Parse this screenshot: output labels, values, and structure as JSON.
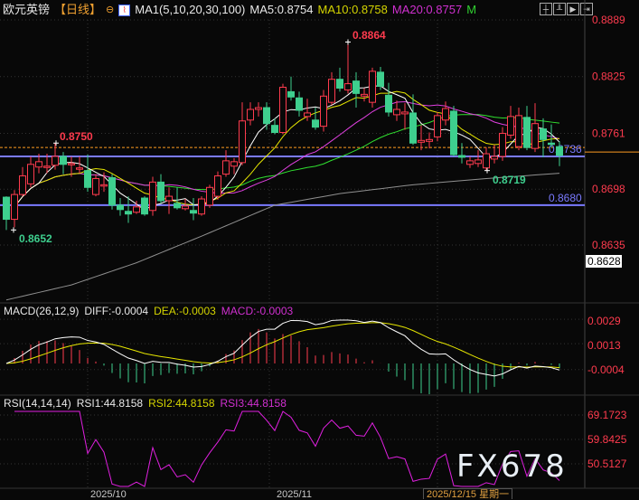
{
  "header": {
    "symbol": "欧元英镑",
    "period": "【日线】",
    "ma_label": "MA1(5,10,20,30,100)",
    "ma5": "MA5:0.8754",
    "ma10": "MA10:0.8758",
    "ma20": "MA20:0.8757",
    "ma_more": "M"
  },
  "toolbar_icons": [
    "crosshair-icon",
    "ruler-icon",
    "chart-type-icon",
    "exit-icon"
  ],
  "colors": {
    "up": "#ff3b4e",
    "down": "#3ecf8e",
    "ma5": "#ffffff",
    "ma10": "#e6e600",
    "ma20": "#e040e0",
    "ma30": "#30e030",
    "ma100": "#909090",
    "hline": "#7a7aff",
    "current": "#ff9a20"
  },
  "macd": {
    "label": "MACD(26,12,9)",
    "diff": "DIFF:-0.0004",
    "dea": "DEA:-0.0003",
    "macd": "MACD:-0.0003",
    "axis": [
      "0.0029",
      "0.0013",
      "-0.0004"
    ]
  },
  "rsi": {
    "label": "RSI(14,14,14)",
    "rsi1": "RSI1:44.8158",
    "rsi2": "RSI2:44.8158",
    "rsi3": "RSI3:44.8158",
    "axis": [
      "69.1723",
      "59.8425",
      "50.5127"
    ]
  },
  "dates": {
    "d1": "2025/10",
    "d2": "2025/11",
    "current": "2025/12/15 星期一"
  },
  "watermark": "FX678",
  "chart_data": {
    "type": "candlestick",
    "price_axis": [
      "0.8889",
      "0.8825",
      "0.8761",
      "0.8698",
      "0.8635",
      "0.8628"
    ],
    "ylim": [
      0.857,
      0.8889
    ],
    "annotations": {
      "high": "0.8864",
      "low": "0.8652",
      "left_high": "0.8750",
      "recent_low": "0.8719",
      "line1": "0.8736",
      "line2": "0.8680"
    },
    "lines": {
      "resistance": 0.8736,
      "support": 0.868,
      "current": 0.874
    },
    "ohlc": [
      [
        0.8689,
        0.869,
        0.8652,
        0.8664
      ],
      [
        0.8664,
        0.8697,
        0.8655,
        0.8692
      ],
      [
        0.8692,
        0.8723,
        0.869,
        0.8713
      ],
      [
        0.8704,
        0.8735,
        0.87,
        0.8726
      ],
      [
        0.8723,
        0.8738,
        0.8716,
        0.8729
      ],
      [
        0.8723,
        0.8738,
        0.8716,
        0.8724
      ],
      [
        0.8725,
        0.875,
        0.872,
        0.8735
      ],
      [
        0.8735,
        0.874,
        0.8715,
        0.8726
      ],
      [
        0.8726,
        0.8735,
        0.8712,
        0.8727
      ],
      [
        0.8721,
        0.8735,
        0.8716,
        0.8722
      ],
      [
        0.8719,
        0.8737,
        0.8695,
        0.87
      ],
      [
        0.8692,
        0.8715,
        0.869,
        0.871
      ],
      [
        0.8702,
        0.8717,
        0.8695,
        0.8703
      ],
      [
        0.8711,
        0.8715,
        0.8675,
        0.868
      ],
      [
        0.868,
        0.8688,
        0.8668,
        0.8675
      ],
      [
        0.8673,
        0.869,
        0.866,
        0.867
      ],
      [
        0.8672,
        0.8685,
        0.867,
        0.8678
      ],
      [
        0.8688,
        0.869,
        0.8668,
        0.867
      ],
      [
        0.8674,
        0.8712,
        0.8668,
        0.8706
      ],
      [
        0.8706,
        0.8715,
        0.8682,
        0.8685
      ],
      [
        0.8685,
        0.87,
        0.867,
        0.869
      ],
      [
        0.8682,
        0.87,
        0.8675,
        0.8677
      ],
      [
        0.8676,
        0.8687,
        0.8674,
        0.8679
      ],
      [
        0.8674,
        0.8688,
        0.8663,
        0.8671
      ],
      [
        0.867,
        0.869,
        0.8668,
        0.8687
      ],
      [
        0.868,
        0.8703,
        0.8677,
        0.87
      ],
      [
        0.869,
        0.8718,
        0.8686,
        0.8713
      ],
      [
        0.8715,
        0.8742,
        0.8712,
        0.873
      ],
      [
        0.8724,
        0.8733,
        0.8715,
        0.8729
      ],
      [
        0.8728,
        0.8796,
        0.8725,
        0.8775
      ],
      [
        0.8776,
        0.8796,
        0.877,
        0.8788
      ],
      [
        0.8788,
        0.8796,
        0.878,
        0.879
      ],
      [
        0.879,
        0.8796,
        0.8765,
        0.8772
      ],
      [
        0.877,
        0.8778,
        0.876,
        0.8762
      ],
      [
        0.8762,
        0.8817,
        0.876,
        0.8813
      ],
      [
        0.8808,
        0.8825,
        0.8798,
        0.8802
      ],
      [
        0.8801,
        0.8808,
        0.878,
        0.8787
      ],
      [
        0.878,
        0.88,
        0.8775,
        0.8784
      ],
      [
        0.8776,
        0.879,
        0.8765,
        0.8768
      ],
      [
        0.8769,
        0.881,
        0.8763,
        0.8803
      ],
      [
        0.8796,
        0.883,
        0.8793,
        0.8822
      ],
      [
        0.8822,
        0.8835,
        0.8808,
        0.8812
      ],
      [
        0.881,
        0.8864,
        0.8806,
        0.8817
      ],
      [
        0.882,
        0.883,
        0.879,
        0.8806
      ],
      [
        0.8803,
        0.8812,
        0.8797,
        0.8805
      ],
      [
        0.8796,
        0.8835,
        0.879,
        0.8831
      ],
      [
        0.883,
        0.8836,
        0.881,
        0.8814
      ],
      [
        0.8804,
        0.8818,
        0.878,
        0.8785
      ],
      [
        0.8782,
        0.8798,
        0.8775,
        0.8788
      ],
      [
        0.8783,
        0.8795,
        0.8765,
        0.8785
      ],
      [
        0.8784,
        0.8805,
        0.8748,
        0.875
      ],
      [
        0.8751,
        0.877,
        0.8742,
        0.8753
      ],
      [
        0.8752,
        0.8762,
        0.8744,
        0.8754
      ],
      [
        0.8757,
        0.8785,
        0.8752,
        0.8781
      ],
      [
        0.8776,
        0.8797,
        0.877,
        0.8789
      ],
      [
        0.8786,
        0.8792,
        0.8735,
        0.8737
      ],
      [
        0.8736,
        0.875,
        0.8727,
        0.8734
      ],
      [
        0.8726,
        0.8735,
        0.8722,
        0.873
      ],
      [
        0.8727,
        0.8742,
        0.8723,
        0.8731
      ],
      [
        0.8722,
        0.8745,
        0.8719,
        0.8738
      ],
      [
        0.8732,
        0.8748,
        0.8727,
        0.8735
      ],
      [
        0.8735,
        0.8768,
        0.873,
        0.8761
      ],
      [
        0.8759,
        0.8792,
        0.8755,
        0.878
      ],
      [
        0.8746,
        0.879,
        0.8742,
        0.8781
      ],
      [
        0.8779,
        0.8792,
        0.8742,
        0.8745
      ],
      [
        0.8744,
        0.8795,
        0.874,
        0.8772
      ],
      [
        0.8766,
        0.8778,
        0.8734,
        0.8754
      ],
      [
        0.875,
        0.8771,
        0.8745,
        0.8749
      ],
      [
        0.8746,
        0.8752,
        0.8724,
        0.8736
      ]
    ],
    "ma100": [
      [
        0,
        0.8573
      ],
      [
        8,
        0.859
      ],
      [
        16,
        0.8615
      ],
      [
        24,
        0.8645
      ],
      [
        33,
        0.868
      ],
      [
        41,
        0.8693
      ],
      [
        50,
        0.8703
      ],
      [
        59,
        0.871
      ],
      [
        68,
        0.8716
      ]
    ]
  }
}
